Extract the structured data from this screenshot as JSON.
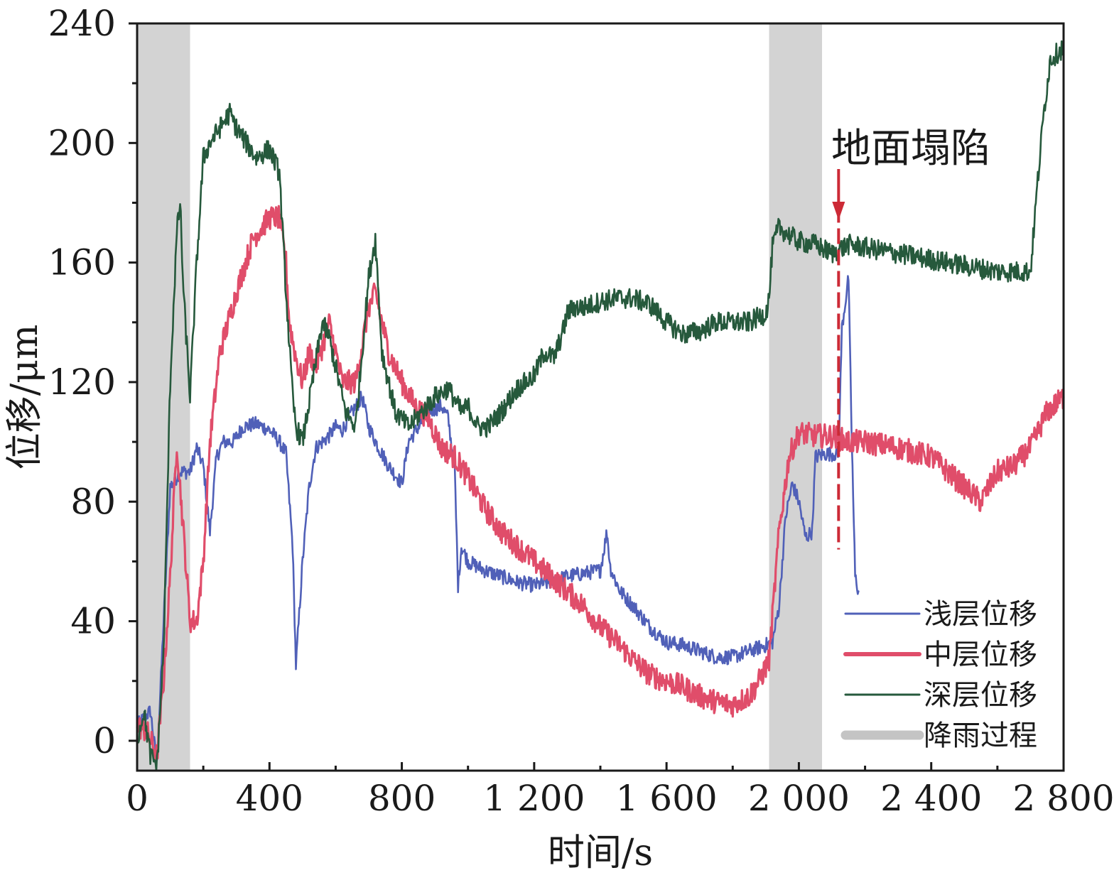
{
  "chart_data": {
    "type": "line",
    "xlabel": "时间/s",
    "ylabel": "位移/μm",
    "xlim": [
      0,
      2800
    ],
    "ylim": [
      -10,
      240
    ],
    "xticks": [
      0,
      400,
      800,
      1200,
      1600,
      2000,
      2400,
      2800
    ],
    "xtick_labels": [
      "0",
      "400",
      "800",
      "1 200",
      "1 600",
      "2 000",
      "2 400",
      "2 800"
    ],
    "yticks": [
      0,
      40,
      80,
      120,
      160,
      200,
      240
    ],
    "ytick_labels": [
      "0",
      "40",
      "80",
      "120",
      "160",
      "200",
      "240"
    ],
    "grid": false,
    "legend_position": "bottom-right",
    "shaded_regions": [
      {
        "name": "降雨过程",
        "x": [
          0,
          160
        ],
        "color": "#d3d3d3"
      },
      {
        "name": "降雨过程",
        "x": [
          1910,
          2070
        ],
        "color": "#d3d3d3"
      }
    ],
    "annotation": {
      "label": "地面塌陷",
      "x": 2120,
      "y_top": 180,
      "y_bottom": 64,
      "color": "#cc2a36"
    },
    "series": [
      {
        "name": "浅层位移",
        "color": "#5060b8",
        "noise": 2.5,
        "x": [
          0,
          40,
          60,
          80,
          100,
          130,
          160,
          180,
          200,
          220,
          240,
          260,
          290,
          320,
          360,
          400,
          430,
          450,
          470,
          480,
          500,
          520,
          540,
          560,
          580,
          600,
          620,
          650,
          680,
          700,
          730,
          760,
          800,
          820,
          850,
          880,
          920,
          940,
          960,
          970,
          980,
          1000,
          1050,
          1100,
          1150,
          1200,
          1250,
          1300,
          1350,
          1400,
          1420,
          1430,
          1440,
          1460,
          1500,
          1550,
          1600,
          1650,
          1700,
          1750,
          1800,
          1850,
          1900,
          1920,
          1940,
          1960,
          1980,
          2000,
          2020,
          2040,
          2050,
          2080,
          2100,
          2120,
          2130,
          2150,
          2160,
          2170,
          2180
        ],
        "values": [
          5,
          10,
          -8,
          40,
          85,
          90,
          90,
          98,
          92,
          70,
          95,
          100,
          100,
          105,
          106,
          104,
          100,
          96,
          65,
          25,
          60,
          85,
          98,
          100,
          102,
          105,
          104,
          110,
          115,
          105,
          98,
          92,
          86,
          100,
          105,
          110,
          112,
          108,
          90,
          52,
          65,
          60,
          57,
          55,
          53,
          52,
          53,
          55,
          56,
          57,
          70,
          58,
          55,
          50,
          45,
          38,
          33,
          32,
          30,
          28,
          28,
          30,
          32,
          33,
          45,
          75,
          86,
          80,
          68,
          70,
          95,
          96,
          96,
          96,
          138,
          155,
          100,
          55,
          50
        ]
      },
      {
        "name": "中层位移",
        "color": "#e04d6a",
        "noise": 4,
        "x": [
          0,
          30,
          60,
          80,
          100,
          120,
          140,
          160,
          180,
          200,
          220,
          250,
          300,
          350,
          400,
          430,
          450,
          460,
          480,
          500,
          520,
          540,
          560,
          580,
          620,
          660,
          700,
          720,
          760,
          800,
          840,
          880,
          920,
          960,
          1000,
          1050,
          1100,
          1150,
          1200,
          1250,
          1300,
          1350,
          1400,
          1450,
          1500,
          1550,
          1600,
          1650,
          1700,
          1750,
          1800,
          1850,
          1880,
          1910,
          1940,
          1970,
          2000,
          2050,
          2100,
          2150,
          2200,
          2300,
          2400,
          2450,
          2500,
          2550,
          2600,
          2650,
          2700,
          2750,
          2800
        ],
        "values": [
          5,
          3,
          -5,
          20,
          55,
          100,
          70,
          40,
          40,
          60,
          100,
          130,
          150,
          168,
          175,
          175,
          160,
          140,
          128,
          120,
          130,
          125,
          132,
          140,
          120,
          120,
          145,
          150,
          130,
          120,
          112,
          108,
          98,
          95,
          88,
          78,
          70,
          65,
          60,
          55,
          50,
          45,
          38,
          33,
          27,
          22,
          20,
          18,
          15,
          13,
          12,
          15,
          20,
          27,
          70,
          95,
          103,
          102,
          102,
          100,
          100,
          98,
          95,
          90,
          85,
          80,
          90,
          92,
          98,
          110,
          115
        ]
      },
      {
        "name": "深层位移",
        "color": "#26593c",
        "noise": 3.5,
        "x": [
          0,
          20,
          40,
          60,
          80,
          100,
          120,
          130,
          140,
          160,
          180,
          200,
          220,
          250,
          280,
          300,
          330,
          360,
          400,
          430,
          450,
          470,
          480,
          500,
          530,
          560,
          580,
          600,
          630,
          660,
          700,
          720,
          740,
          780,
          820,
          860,
          900,
          940,
          980,
          1000,
          1030,
          1060,
          1100,
          1150,
          1200,
          1230,
          1260,
          1290,
          1300,
          1320,
          1350,
          1400,
          1450,
          1500,
          1550,
          1600,
          1650,
          1700,
          1750,
          1800,
          1850,
          1900,
          1910,
          1920,
          1940,
          1960,
          2000,
          2050,
          2100,
          2150,
          2200,
          2300,
          2400,
          2500,
          2600,
          2700,
          2720,
          2740,
          2760,
          2800
        ],
        "values": [
          0,
          10,
          -5,
          -8,
          30,
          120,
          170,
          180,
          150,
          115,
          160,
          195,
          200,
          205,
          210,
          205,
          200,
          195,
          198,
          190,
          150,
          115,
          105,
          100,
          120,
          140,
          135,
          125,
          110,
          105,
          155,
          168,
          130,
          110,
          105,
          110,
          115,
          118,
          110,
          112,
          105,
          105,
          110,
          118,
          122,
          130,
          128,
          138,
          143,
          145,
          145,
          147,
          148,
          148,
          146,
          140,
          136,
          137,
          140,
          140,
          140,
          143,
          148,
          165,
          172,
          170,
          167,
          166,
          163,
          166,
          165,
          163,
          161,
          159,
          157,
          157,
          185,
          210,
          228,
          232
        ]
      }
    ]
  }
}
